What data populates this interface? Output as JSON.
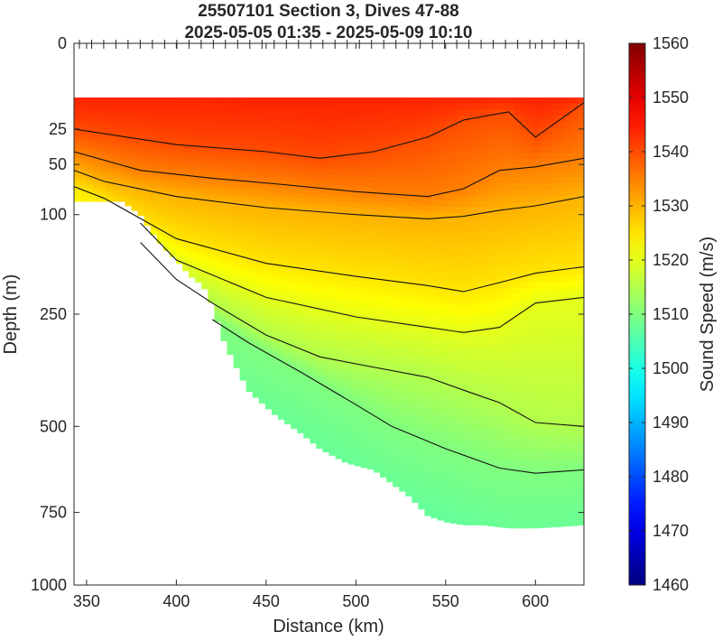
{
  "chart_data": {
    "type": "heatmap",
    "title": "25507101 Section 3, Dives 47-88",
    "subtitle": "2025-05-05 01:35 - 2025-05-09 10:10",
    "xlabel": "Distance (km)",
    "ylabel": "Depth (m)",
    "colorbar_label": "Sound Speed (m/s)",
    "xlim": [
      343,
      627
    ],
    "ylim": [
      0,
      1000
    ],
    "y_axis_scale": "sqrt",
    "x_ticks": [
      350,
      400,
      450,
      500,
      550,
      600
    ],
    "y_ticks": [
      0,
      25,
      50,
      100,
      250,
      500,
      750,
      1000
    ],
    "colorbar_range": [
      1460,
      1560
    ],
    "colorbar_ticks": [
      1460,
      1470,
      1480,
      1490,
      1500,
      1510,
      1520,
      1530,
      1540,
      1550,
      1560
    ],
    "colormap": "jet",
    "contour_interval": 5,
    "grid": false,
    "data_top_depth": 10,
    "bottom_profile": {
      "distance_km": [
        343,
        370,
        380,
        392,
        400,
        408,
        415,
        421,
        425,
        440,
        455,
        470,
        480,
        495,
        510,
        520,
        530,
        540,
        550,
        560,
        570,
        585,
        600,
        615,
        627
      ],
      "max_depth_m": [
        85,
        85,
        100,
        140,
        160,
        185,
        200,
        240,
        290,
        410,
        470,
        520,
        560,
        600,
        620,
        660,
        700,
        760,
        780,
        790,
        790,
        800,
        800,
        795,
        790
      ]
    },
    "isotherm_profiles": [
      {
        "value": 1540,
        "distance_km": [
          343,
          400,
          450,
          480,
          510,
          540,
          560,
          585,
          600,
          627
        ],
        "depth_m": [
          25,
          35,
          40,
          45,
          40,
          30,
          20,
          16,
          30,
          12
        ]
      },
      {
        "value": 1535,
        "distance_km": [
          343,
          380,
          420,
          460,
          500,
          540,
          560,
          580,
          600,
          627
        ],
        "depth_m": [
          40,
          55,
          62,
          68,
          75,
          80,
          72,
          55,
          52,
          45
        ]
      },
      {
        "value": 1530,
        "distance_km": [
          343,
          360,
          400,
          450,
          500,
          540,
          560,
          580,
          600,
          627
        ],
        "depth_m": [
          55,
          65,
          80,
          92,
          100,
          105,
          102,
          95,
          90,
          80
        ]
      },
      {
        "value": 1525,
        "distance_km": [
          343,
          360,
          400,
          450,
          500,
          540,
          560,
          580,
          600,
          627
        ],
        "depth_m": [
          70,
          82,
          130,
          165,
          185,
          200,
          210,
          195,
          180,
          170
        ]
      },
      {
        "value": 1520,
        "distance_km": [
          380,
          400,
          450,
          500,
          540,
          560,
          580,
          600,
          627
        ],
        "depth_m": [
          110,
          160,
          220,
          255,
          275,
          285,
          275,
          230,
          220
        ]
      },
      {
        "value": 1515,
        "distance_km": [
          380,
          400,
          420,
          450,
          480,
          500,
          540,
          560,
          580,
          600,
          627
        ],
        "depth_m": [
          135,
          190,
          230,
          290,
          335,
          350,
          380,
          410,
          440,
          490,
          500
        ]
      },
      {
        "value": 1510,
        "distance_km": [
          420,
          440,
          470,
          500,
          520,
          550,
          580,
          600,
          627
        ],
        "depth_m": [
          260,
          305,
          370,
          445,
          500,
          560,
          615,
          630,
          620
        ]
      }
    ]
  }
}
